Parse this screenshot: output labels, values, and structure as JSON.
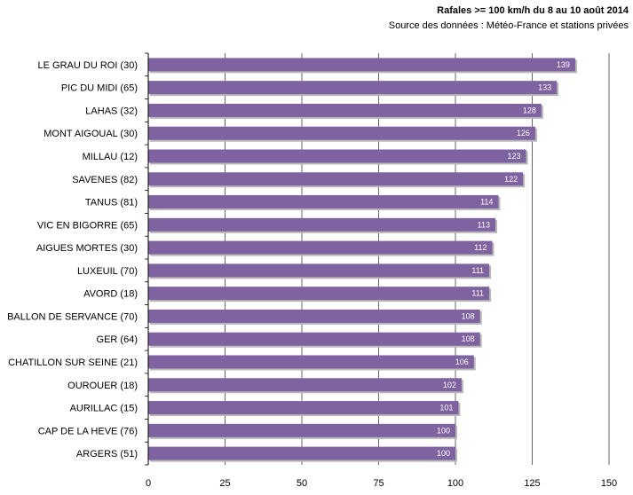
{
  "chart_data": {
    "type": "bar",
    "orientation": "horizontal",
    "title": "Rafales >= 100 km/h du 8 au 10 août 2014",
    "subtitle": "Source des données : Météo-France et stations privées",
    "categories": [
      "LE GRAU DU ROI (30)",
      "PIC DU MIDI (65)",
      "LAHAS (32)",
      "MONT AIGOUAL (30)",
      "MILLAU (12)",
      "SAVENES (82)",
      "TANUS (81)",
      "VIC EN BIGORRE (65)",
      "AIGUES MORTES (30)",
      "LUXEUIL (70)",
      "AVORD (18)",
      "BALLON DE SERVANCE (70)",
      "GER (64)",
      "CHATILLON SUR SEINE (21)",
      "OUROUER (18)",
      "AURILLAC (15)",
      "CAP DE LA HEVE (76)",
      "ARGERS (51)"
    ],
    "values": [
      139,
      133,
      128,
      126,
      123,
      122,
      114,
      113,
      112,
      111,
      111,
      108,
      108,
      106,
      102,
      101,
      100,
      100
    ],
    "xlim": [
      0,
      150
    ],
    "xticks": [
      0,
      25,
      50,
      75,
      100,
      125,
      150
    ],
    "grid": true,
    "data_labels": true,
    "bar_color": "#7F63A1",
    "grid_color": "#000000"
  }
}
